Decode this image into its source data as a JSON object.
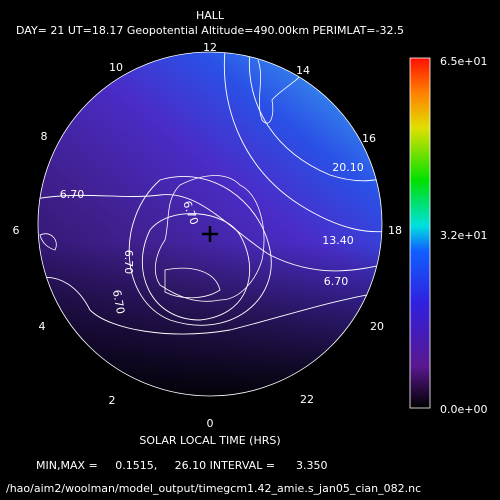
{
  "header": {
    "title": "HALL",
    "subtitle": "DAY= 21 UT=18.17 Geopotential Altitude=490.00km PERIMLAT=-32.5"
  },
  "local_time_labels": [
    "12",
    "14",
    "16",
    "18",
    "20",
    "22",
    "0",
    "2",
    "4",
    "6",
    "8",
    "10"
  ],
  "contour_labels": [
    "20.10",
    "13.40",
    "6.70",
    "6.70",
    "6.70",
    "6.70",
    "6.70"
  ],
  "colorbar": {
    "labels": [
      "6.5e+01",
      "3.2e+01",
      "0.0e+00"
    ]
  },
  "xlabel": "SOLAR LOCAL TIME (HRS)",
  "footer": {
    "stats": "MIN,MAX =     0.1515,     26.10 INTERVAL =      3.350",
    "file": "/hao/aim2/woolman/model_output/timegcm1.42_amie.s_jan05_cian_082.nc"
  }
}
